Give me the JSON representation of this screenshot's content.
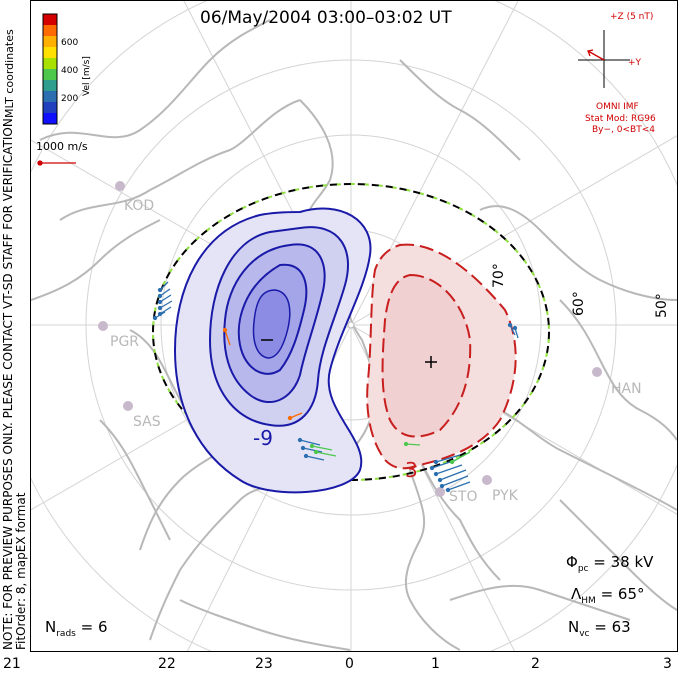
{
  "title": "06/May/2004 03:00–03:02 UT",
  "side_note": {
    "line1": "NOTE: FOR PREVIEW PURPOSES ONLY. PLEASE CONTACT VT-SD STAFF FOR VERIFICATION.",
    "line2": "FitOrder: 8, mapEX format"
  },
  "coord_label": "MLT coordinates",
  "colorbar": {
    "label": "Vel [m/s]",
    "ticks": [
      "600",
      "400",
      "200"
    ],
    "colors": [
      "#d40000",
      "#ff6a00",
      "#ffb000",
      "#ffe000",
      "#a8e000",
      "#4dc84d",
      "#2e9e8e",
      "#2b6fb0",
      "#2040c0",
      "#1010ff"
    ]
  },
  "scale_vector": {
    "label": "1000 m/s",
    "color": "#d00000"
  },
  "imf": {
    "axis_z": "+Z (5 nT)",
    "axis_y": "+Y",
    "source": "OMNI IMF",
    "model": "Stat Mod: RG96",
    "condition": "By−, 0<BT<4",
    "color": "#d00000"
  },
  "stats": {
    "phi_symbol": "Φ",
    "phi_sub": "pc",
    "phi_value": "= 38 kV",
    "lambda_symbol": "Λ",
    "lambda_sub": "HM",
    "lambda_value": "= 65°",
    "nvc_symbol": "N",
    "nvc_sub": "vc",
    "nvc_value": "= 63",
    "nrads_symbol": "N",
    "nrads_sub": "rads",
    "nrads_value": "= 6"
  },
  "latitude_labels": [
    "70°",
    "60°",
    "50°"
  ],
  "mlt_labels": [
    "21",
    "22",
    "23",
    "0",
    "1",
    "2",
    "3"
  ],
  "stations": [
    "KOD",
    "PGR",
    "SAS",
    "HAN",
    "STO",
    "PYK"
  ],
  "contour_labels": {
    "negative": "-9",
    "positive": "3"
  },
  "colors": {
    "negative_cell": "#1a1aa8",
    "positive_cell": "#c81e1e",
    "boundary_dash": "#90e040",
    "map": "#b8b8b8",
    "grid": "#d4d4d4"
  }
}
